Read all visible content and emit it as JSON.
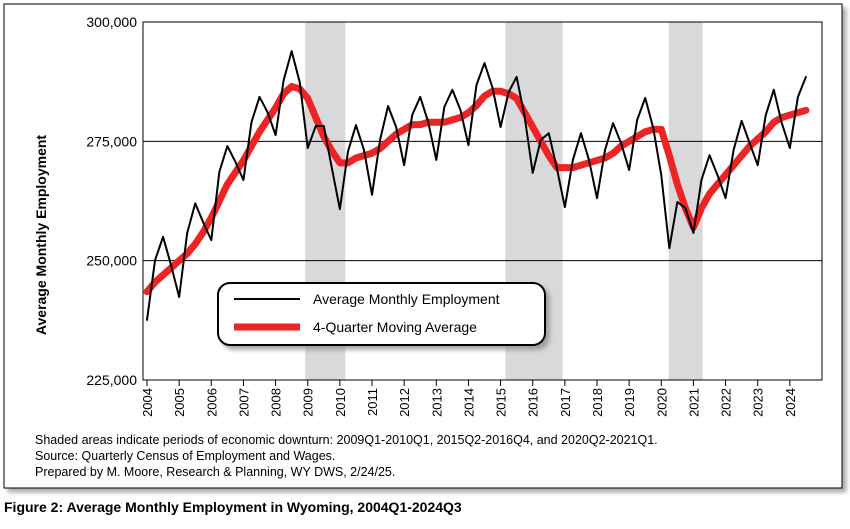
{
  "chart_data": {
    "type": "line",
    "y_axis_label": "Average Monthly Employment",
    "caption": "Figure 2: Average Monthly Employment in Wyoming, 2004Q1-2024Q3",
    "notes": [
      "Shaded areas indicate periods of economic downturn: 2009Q1-2010Q1, 2015Q2-2016Q4, and 2020Q2-2021Q1.",
      "Source: Quarterly Census of Employment and Wages.",
      "Prepared by M. Moore, Research & Planning, WY DWS, 2/24/25."
    ],
    "shaded_periods": [
      [
        2008.92,
        2010.17
      ],
      [
        2015.15,
        2016.93
      ],
      [
        2020.23,
        2021.29
      ]
    ],
    "xlim": [
      2003.875,
      2025.0
    ],
    "xticks": [
      2004,
      2005,
      2006,
      2007,
      2008,
      2009,
      2010,
      2011,
      2012,
      2013,
      2014,
      2015,
      2016,
      2017,
      2018,
      2019,
      2020,
      2021,
      2022,
      2023,
      2024
    ],
    "ylim": [
      225000,
      300000
    ],
    "yticks": [
      {
        "value": 225000,
        "label": "225,000"
      },
      {
        "value": 250000,
        "label": "250,000"
      },
      {
        "value": 275000,
        "label": "275,000"
      },
      {
        "value": 300000,
        "label": "300,000"
      }
    ],
    "legend": "bottom-left",
    "x": [
      2004,
      2004.25,
      2004.5,
      2004.75,
      2005,
      2005.25,
      2005.5,
      2005.75,
      2006,
      2006.25,
      2006.5,
      2006.75,
      2007,
      2007.25,
      2007.5,
      2007.75,
      2008,
      2008.25,
      2008.5,
      2008.75,
      2009,
      2009.25,
      2009.5,
      2009.75,
      2010,
      2010.25,
      2010.5,
      2010.75,
      2011,
      2011.25,
      2011.5,
      2011.75,
      2012,
      2012.25,
      2012.5,
      2012.75,
      2013,
      2013.25,
      2013.5,
      2013.75,
      2014,
      2014.25,
      2014.5,
      2014.75,
      2015,
      2015.25,
      2015.5,
      2015.75,
      2016,
      2016.25,
      2016.5,
      2016.75,
      2017,
      2017.25,
      2017.5,
      2017.75,
      2018,
      2018.25,
      2018.5,
      2018.75,
      2019,
      2019.25,
      2019.5,
      2019.75,
      2020,
      2020.25,
      2020.5,
      2020.75,
      2021,
      2021.25,
      2021.5,
      2021.75,
      2022,
      2022.25,
      2022.5,
      2022.75,
      2023,
      2023.25,
      2023.5,
      2023.75,
      2024,
      2024.25,
      2024.5
    ],
    "series": [
      {
        "name": "Average Monthly Employment",
        "color": "#000000",
        "values": [
          237600,
          250100,
          255000,
          249000,
          242400,
          255800,
          262000,
          258000,
          254300,
          268600,
          274000,
          270700,
          266900,
          279000,
          284300,
          281100,
          276300,
          287800,
          293900,
          287400,
          273600,
          278200,
          278200,
          269400,
          260800,
          272800,
          278400,
          273200,
          263800,
          275300,
          282400,
          278000,
          270000,
          280500,
          284300,
          279000,
          271100,
          282200,
          285800,
          281600,
          274200,
          286800,
          291400,
          286200,
          278000,
          285300,
          288500,
          280100,
          268400,
          275300,
          276700,
          269400,
          261200,
          271100,
          276700,
          271100,
          263100,
          273200,
          278800,
          274600,
          269000,
          279500,
          284100,
          277800,
          267900,
          252600,
          262300,
          261000,
          255800,
          266900,
          272100,
          267900,
          263100,
          273200,
          279300,
          274600,
          270000,
          280500,
          285800,
          278800,
          273600,
          284300,
          288500
        ]
      },
      {
        "name": "4-Quarter Moving Average",
        "color": "#ee2424",
        "values": [
          243500,
          245500,
          247000,
          248500,
          250000,
          251500,
          253500,
          256000,
          259000,
          262500,
          266000,
          268500,
          271000,
          274000,
          277000,
          279500,
          282000,
          285000,
          286500,
          286000,
          284000,
          280000,
          276000,
          273000,
          270500,
          270500,
          271500,
          272000,
          272500,
          273500,
          275000,
          276500,
          277500,
          278500,
          278500,
          279000,
          279000,
          279000,
          279500,
          280000,
          281000,
          282500,
          284500,
          285500,
          285500,
          285000,
          284000,
          281000,
          278000,
          275000,
          272000,
          269500,
          269500,
          269500,
          270000,
          270500,
          271000,
          271500,
          272500,
          274000,
          275000,
          276000,
          277000,
          277500,
          277500,
          272000,
          266000,
          261000,
          257000,
          261000,
          264000,
          266000,
          268000,
          270000,
          272000,
          274000,
          275500,
          277000,
          279000,
          280000,
          280500,
          281000,
          281500
        ]
      }
    ]
  }
}
